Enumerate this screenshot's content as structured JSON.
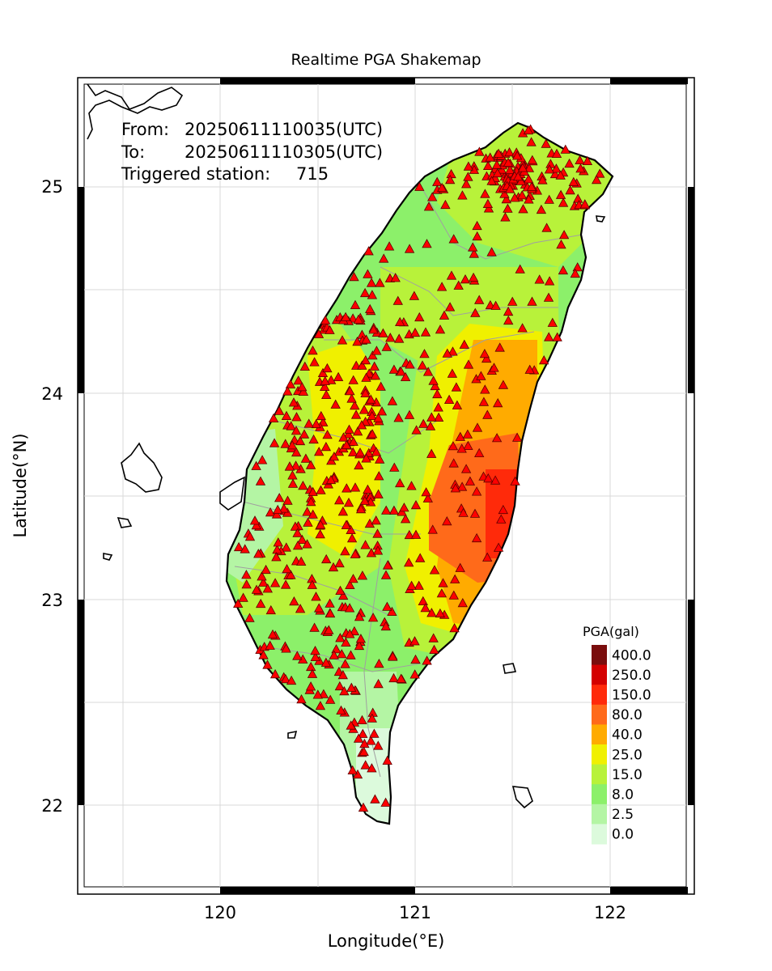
{
  "title": "Realtime PGA Shakemap",
  "info": {
    "from_label": "From:",
    "from_value": "20250611110035(UTC)",
    "to_label": "To:",
    "to_value": "20250611110305(UTC)",
    "triggered_label": "Triggered station:",
    "triggered_count": "715"
  },
  "axes": {
    "xlabel": "Longitude(°E)",
    "ylabel": "Latitude(°N)",
    "x_ticks": [
      "120",
      "121",
      "122"
    ],
    "y_ticks": [
      "25",
      "24",
      "23",
      "22"
    ],
    "lon_range": [
      119.25,
      122.4
    ],
    "lat_range": [
      21.55,
      25.55
    ]
  },
  "legend": {
    "title": "PGA(gal)",
    "items": [
      {
        "label": "400.0",
        "color": "#7a0d0d"
      },
      {
        "label": "250.0",
        "color": "#d40000"
      },
      {
        "label": "150.0",
        "color": "#ff2a0a"
      },
      {
        "label": "80.0",
        "color": "#ff6a1a"
      },
      {
        "label": "40.0",
        "color": "#ffab00"
      },
      {
        "label": "25.0",
        "color": "#f0f000"
      },
      {
        "label": "15.0",
        "color": "#b8f23a"
      },
      {
        "label": "8.0",
        "color": "#8cf06a"
      },
      {
        "label": "2.5",
        "color": "#b4f5a4"
      },
      {
        "label": "0.0",
        "color": "#dcfadc"
      }
    ]
  },
  "colors": {
    "station_fill": "#ff0000",
    "station_edge": "#5a0000",
    "coastline": "#000000",
    "county_border": "#a0a0a0",
    "grid": "#d8d8d8"
  },
  "station_symbol": "triangle-icon"
}
